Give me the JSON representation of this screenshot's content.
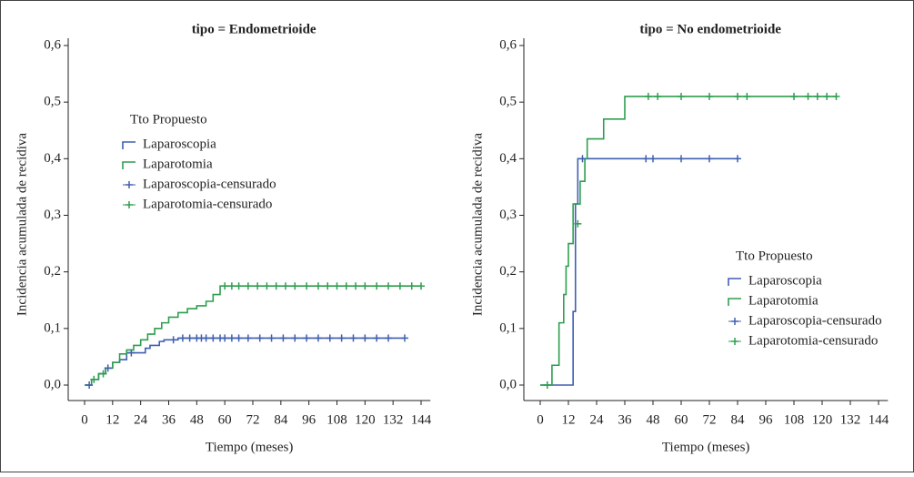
{
  "chart_data": [
    {
      "type": "step",
      "title": "tipo = Endometrioide",
      "xlabel": "Tiempo (meses)",
      "ylabel": "Incidencia acumulada de recidiva",
      "legend_title": "Tto Propuesto",
      "legend": "upper left",
      "xlim": [
        0,
        148
      ],
      "ylim": [
        0,
        0.6
      ],
      "xticks": [
        0,
        12,
        24,
        36,
        48,
        60,
        72,
        84,
        96,
        108,
        120,
        132,
        144
      ],
      "yticks": [
        {
          "value": 0,
          "label": "0,0"
        },
        {
          "value": 0.1,
          "label": "0,1"
        },
        {
          "value": 0.2,
          "label": "0,2"
        },
        {
          "value": 0.3,
          "label": "0,3"
        },
        {
          "value": 0.4,
          "label": "0,4"
        },
        {
          "value": 0.5,
          "label": "0,5"
        },
        {
          "value": 0.6,
          "label": "0,6"
        }
      ],
      "series": [
        {
          "name": "Laparoscopia",
          "color": "#3f5fb0",
          "kind": "step",
          "x": [
            0,
            3,
            6,
            9,
            12,
            15,
            18,
            26,
            28,
            32,
            34,
            40,
            137
          ],
          "values": [
            0,
            0.01,
            0.02,
            0.03,
            0.04,
            0.045,
            0.057,
            0.065,
            0.07,
            0.077,
            0.08,
            0.083,
            0.083
          ]
        },
        {
          "name": "Laparotomia",
          "color": "#2e9e4f",
          "kind": "step",
          "x": [
            0,
            3,
            6,
            9,
            12,
            15,
            18,
            21,
            24,
            27,
            30,
            33,
            36,
            40,
            44,
            48,
            52,
            55,
            58,
            144
          ],
          "values": [
            0,
            0.01,
            0.02,
            0.03,
            0.04,
            0.055,
            0.062,
            0.07,
            0.08,
            0.09,
            0.1,
            0.11,
            0.12,
            0.128,
            0.135,
            0.14,
            0.148,
            0.16,
            0.175,
            0.175
          ]
        },
        {
          "name": "Laparoscopia-censurado",
          "color": "#3f5fb0",
          "kind": "censor",
          "x": [
            2,
            10,
            20,
            38,
            42,
            45,
            48,
            50,
            52,
            55,
            58,
            60,
            63,
            66,
            70,
            75,
            80,
            85,
            90,
            95,
            100,
            105,
            110,
            115,
            120,
            125,
            130,
            137
          ],
          "values": [
            0,
            0.03,
            0.057,
            0.08,
            0.083,
            0.083,
            0.083,
            0.083,
            0.083,
            0.083,
            0.083,
            0.083,
            0.083,
            0.083,
            0.083,
            0.083,
            0.083,
            0.083,
            0.083,
            0.083,
            0.083,
            0.083,
            0.083,
            0.083,
            0.083,
            0.083,
            0.083,
            0.083
          ]
        },
        {
          "name": "Laparotomia-censurado",
          "color": "#2e9e4f",
          "kind": "censor",
          "x": [
            4,
            8,
            60,
            63,
            66,
            70,
            74,
            78,
            82,
            86,
            90,
            95,
            100,
            104,
            108,
            112,
            116,
            120,
            125,
            130,
            135,
            140,
            144
          ],
          "values": [
            0.01,
            0.02,
            0.175,
            0.175,
            0.175,
            0.175,
            0.175,
            0.175,
            0.175,
            0.175,
            0.175,
            0.175,
            0.175,
            0.175,
            0.175,
            0.175,
            0.175,
            0.175,
            0.175,
            0.175,
            0.175,
            0.175,
            0.175
          ]
        }
      ]
    },
    {
      "type": "step",
      "title": "tipo = No endometrioide",
      "xlabel": "Tiempo (meses)",
      "ylabel": "Incidencia acumulada de recidiva",
      "legend_title": "Tto Propuesto",
      "legend": "lower right",
      "xlim": [
        0,
        148
      ],
      "ylim": [
        0,
        0.6
      ],
      "xticks": [
        0,
        12,
        24,
        36,
        48,
        60,
        72,
        84,
        96,
        108,
        120,
        132,
        144
      ],
      "yticks": [
        {
          "value": 0,
          "label": "0,0"
        },
        {
          "value": 0.1,
          "label": "0,1"
        },
        {
          "value": 0.2,
          "label": "0,2"
        },
        {
          "value": 0.3,
          "label": "0,3"
        },
        {
          "value": 0.4,
          "label": "0,4"
        },
        {
          "value": 0.5,
          "label": "0,5"
        },
        {
          "value": 0.6,
          "label": "0,6"
        }
      ],
      "series": [
        {
          "name": "Laparoscopia",
          "color": "#3f5fb0",
          "kind": "step",
          "x": [
            0,
            14,
            15,
            16,
            84
          ],
          "values": [
            0,
            0.13,
            0.32,
            0.4,
            0.4
          ]
        },
        {
          "name": "Laparotomia",
          "color": "#2e9e4f",
          "kind": "step",
          "x": [
            0,
            5,
            8,
            10,
            11,
            12,
            14,
            17,
            19,
            20,
            27,
            36,
            126
          ],
          "values": [
            0,
            0.035,
            0.11,
            0.16,
            0.21,
            0.25,
            0.32,
            0.36,
            0.4,
            0.435,
            0.47,
            0.51,
            0.51
          ]
        },
        {
          "name": "Laparoscopia-censurado",
          "color": "#3f5fb0",
          "kind": "censor",
          "x": [
            18,
            45,
            48,
            60,
            72,
            84
          ],
          "values": [
            0.4,
            0.4,
            0.4,
            0.4,
            0.4,
            0.4
          ]
        },
        {
          "name": "Laparotomia-censurado",
          "color": "#2e9e4f",
          "kind": "censor",
          "x": [
            3,
            16,
            46,
            50,
            60,
            72,
            84,
            88,
            108,
            114,
            118,
            122,
            126
          ],
          "values": [
            0,
            0.285,
            0.51,
            0.51,
            0.51,
            0.51,
            0.51,
            0.51,
            0.51,
            0.51,
            0.51,
            0.51,
            0.51
          ]
        }
      ]
    }
  ]
}
